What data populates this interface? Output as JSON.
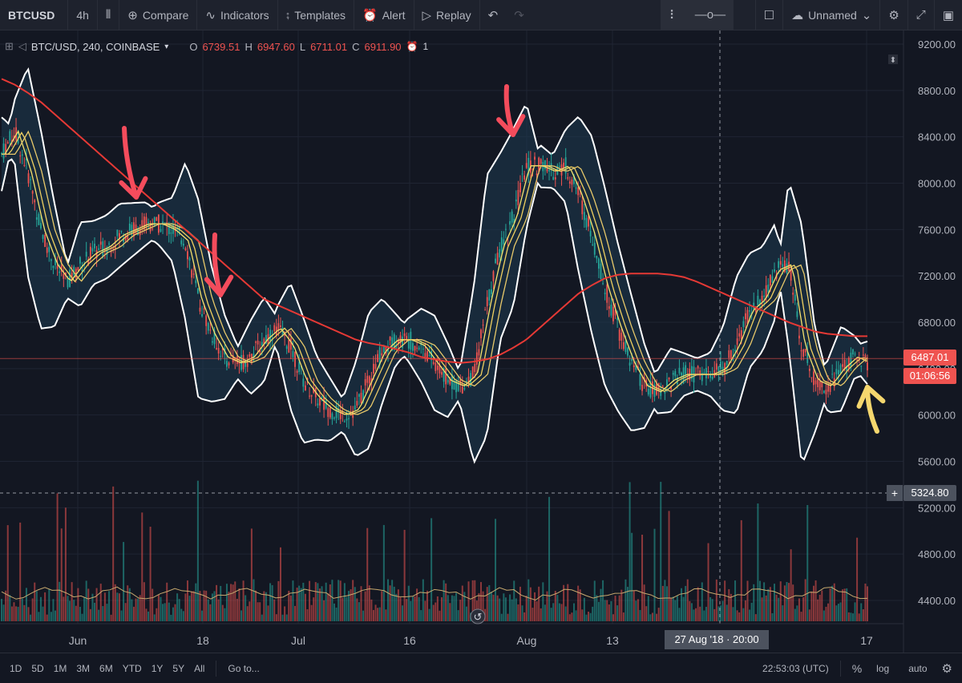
{
  "toolbar": {
    "symbol": "BTCUSD",
    "interval": "4h",
    "compare": "Compare",
    "indicators": "Indicators",
    "templates": "Templates",
    "alert": "Alert",
    "replay": "Replay",
    "layout_name": "Unnamed"
  },
  "legend": {
    "title": "BTC/USD, 240, COINBASE",
    "o_label": "O",
    "o_value": "6739.51",
    "h_label": "H",
    "h_value": "6947.60",
    "l_label": "L",
    "l_value": "6711.01",
    "c_label": "C",
    "c_value": "6911.90",
    "alerts": "1"
  },
  "price_tags": {
    "last_price": "6487.01",
    "countdown": "01:06:56",
    "crosshair_price": "5324.80"
  },
  "crosshair_time": "27 Aug '18 · 20:00",
  "bottom": {
    "ranges": [
      "1D",
      "5D",
      "1M",
      "3M",
      "6M",
      "YTD",
      "1Y",
      "5Y",
      "All"
    ],
    "goto": "Go to...",
    "clock": "22:53:03 (UTC)",
    "percent": "%",
    "log": "log",
    "auto": "auto"
  },
  "colors": {
    "background": "#131722",
    "up": "#26a69a",
    "down": "#ef5350",
    "ma200": "#e53935",
    "bands": "#ffffff",
    "ma_fast": "#f5e36e",
    "arrow_red": "#f44c5c",
    "arrow_yellow": "#f5d76e"
  },
  "chart_data": {
    "type": "line",
    "y_ticks": [
      "9200.00",
      "8800.00",
      "8400.00",
      "8000.00",
      "7600.00",
      "7200.00",
      "6800.00",
      "6400.00",
      "6000.00",
      "5600.00",
      "5200.00",
      "4800.00",
      "4400.00"
    ],
    "x_ticks": [
      "Jun",
      "18",
      "Jul",
      "16",
      "Aug",
      "13",
      "17"
    ],
    "ylim": [
      4200,
      9200
    ],
    "series": [
      {
        "values": [
          8250,
          8450,
          8100,
          7600,
          7300,
          7150,
          7300,
          7400,
          7450,
          7550,
          7600,
          7650,
          7650,
          7600,
          7500,
          7000,
          6700,
          6500,
          6450,
          6500,
          6650,
          6750,
          6600,
          6300,
          6150,
          6050,
          6000,
          6050,
          6300,
          6550,
          6650,
          6650,
          6600,
          6450,
          6300,
          6250,
          6350,
          6950,
          7450,
          7700,
          8150,
          8150,
          8100,
          8150,
          7900,
          7550,
          7100,
          6750,
          6450,
          6250,
          6200,
          6300,
          6350,
          6350,
          6350,
          6400,
          6600,
          6900,
          7000,
          7250,
          7300,
          6600,
          6300,
          6250,
          6400,
          6500,
          6450
        ]
      },
      {
        "values": [
          8900,
          8850,
          8780,
          8700,
          8600,
          8500,
          8400,
          8300,
          8200,
          8100,
          8000,
          7900,
          7800,
          7700,
          7600,
          7500,
          7400,
          7300,
          7200,
          7100,
          7000,
          6950,
          6900,
          6850,
          6800,
          6750,
          6700,
          6650,
          6620,
          6600,
          6570,
          6540,
          6500,
          6480,
          6460,
          6450,
          6460,
          6480,
          6520,
          6580,
          6650,
          6750,
          6850,
          6950,
          7050,
          7120,
          7180,
          7210,
          7220,
          7220,
          7220,
          7210,
          7190,
          7150,
          7100,
          7050,
          7000,
          6950,
          6900,
          6850,
          6800,
          6760,
          6720,
          6700,
          6690,
          6680,
          6680
        ]
      }
    ],
    "annotations": [
      "red arrow near early June peak",
      "red arrow near 20 Jun peak",
      "red arrow near late July peak",
      "yellow arrow near 17 Sep low"
    ]
  }
}
